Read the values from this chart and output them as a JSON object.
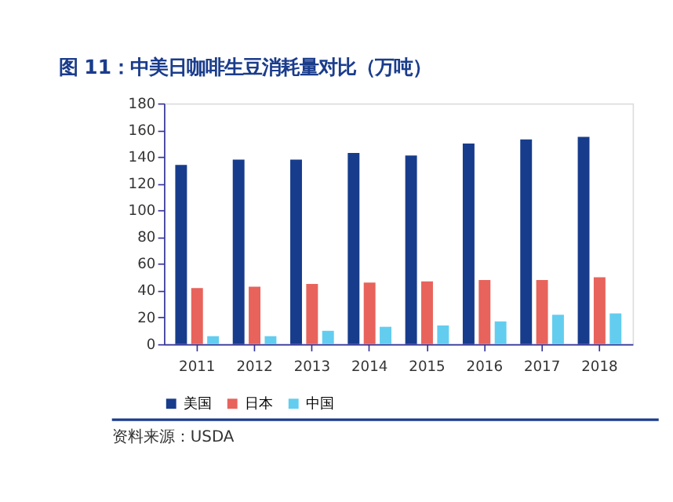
{
  "chart_data": {
    "type": "bar",
    "title": "图 11：中美日咖啡生豆消耗量对比（万吨）",
    "categories": [
      "2011",
      "2012",
      "2013",
      "2014",
      "2015",
      "2016",
      "2017",
      "2018"
    ],
    "series": [
      {
        "name": "美国",
        "color": "#173c8c",
        "values": [
          134,
          138,
          138,
          143,
          141,
          150,
          153,
          155
        ]
      },
      {
        "name": "日本",
        "color": "#e8635b",
        "values": [
          42,
          43,
          45,
          46,
          47,
          48,
          48,
          50
        ]
      },
      {
        "name": "中国",
        "color": "#62cdef",
        "values": [
          6,
          6,
          10,
          13,
          14,
          17,
          22,
          23
        ]
      }
    ],
    "ylim": [
      0,
      180
    ],
    "yticks": [
      0,
      20,
      40,
      60,
      80,
      100,
      120,
      140,
      160,
      180
    ],
    "grid": false,
    "legend": "bottom",
    "annotations": [
      "资料来源：USDA"
    ]
  }
}
